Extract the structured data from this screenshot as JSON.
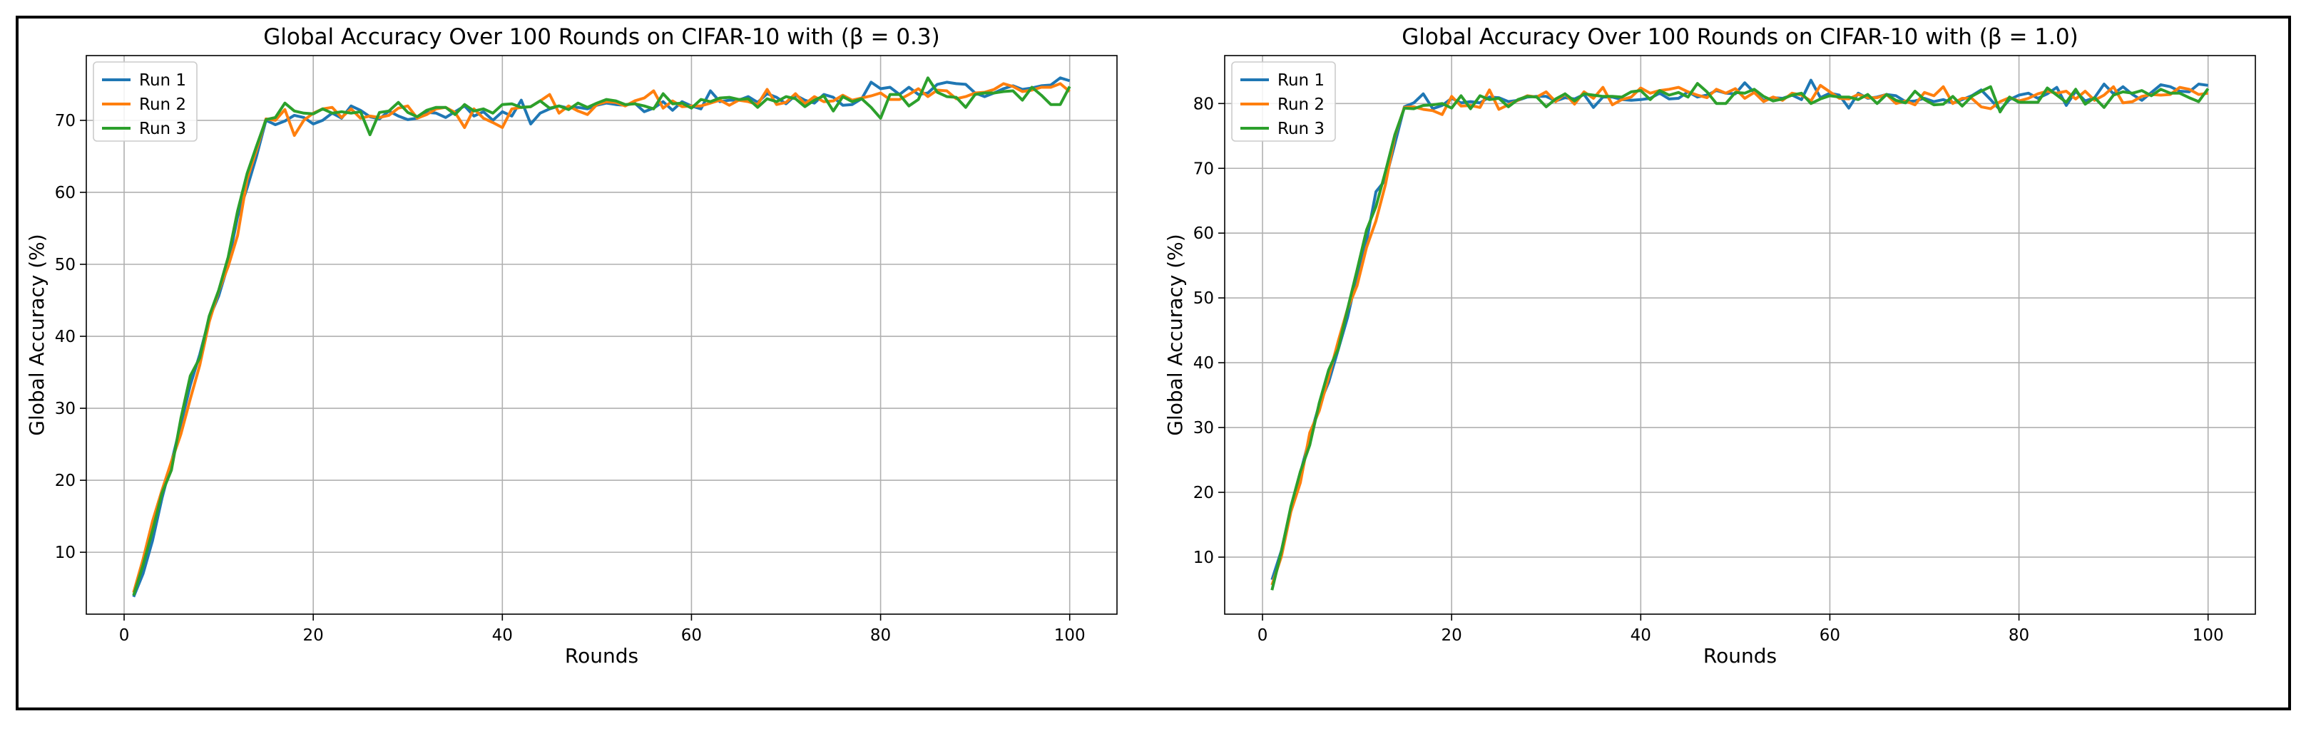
{
  "chart_data": [
    {
      "type": "line",
      "title": "Global Accuracy Over 100 Rounds on CIFAR-10 with (β = 0.3)",
      "xlabel": "Rounds",
      "ylabel": "Global Accuracy (%)",
      "xlim": [
        -4,
        105
      ],
      "ylim": [
        1.4,
        79.0
      ],
      "xticks": [
        0,
        20,
        40,
        60,
        80,
        100
      ],
      "yticks": [
        10,
        20,
        30,
        40,
        50,
        60,
        70
      ],
      "grid": true,
      "legend_position": "top-left",
      "x": [
        1,
        2,
        3,
        4,
        5,
        6,
        7,
        8,
        9,
        10,
        11,
        12,
        13,
        14,
        15,
        16,
        17,
        18,
        19,
        20,
        21,
        22,
        23,
        24,
        25,
        26,
        27,
        28,
        29,
        30,
        31,
        32,
        33,
        34,
        35,
        36,
        37,
        38,
        39,
        40,
        41,
        42,
        43,
        44,
        45,
        46,
        47,
        48,
        49,
        50,
        51,
        52,
        53,
        54,
        55,
        56,
        57,
        58,
        59,
        60,
        61,
        62,
        63,
        64,
        65,
        66,
        67,
        68,
        69,
        70,
        71,
        72,
        73,
        74,
        75,
        76,
        77,
        78,
        79,
        80,
        81,
        82,
        83,
        84,
        85,
        86,
        87,
        88,
        89,
        90,
        91,
        92,
        93,
        94,
        95,
        96,
        97,
        98,
        99,
        100
      ],
      "series": [
        {
          "name": "Run 1",
          "color": "#1f77b4",
          "values": [
            3.8,
            7.0,
            11.6,
            17.5,
            22.5,
            27.8,
            33.2,
            37.5,
            42.5,
            45.6,
            50.0,
            56.6,
            60.6,
            65.0,
            70.0,
            69.4,
            69.9,
            70.7,
            70.4,
            69.5,
            70.0,
            71.0,
            70.3,
            72.0,
            71.4,
            70.5,
            70.2,
            71.3,
            70.6,
            70.1,
            70.3,
            71.1,
            71.0,
            70.4,
            71.2,
            72.0,
            70.6,
            71.2,
            70.0,
            71.2,
            70.6,
            72.8,
            69.5,
            71.0,
            71.6,
            72.0,
            71.7,
            71.8,
            71.6,
            72.1,
            72.4,
            72.2,
            72.1,
            72.4,
            71.2,
            71.7,
            72.6,
            71.4,
            72.6,
            72.0,
            71.6,
            74.1,
            72.6,
            72.8,
            72.8,
            73.3,
            72.5,
            73.7,
            73.2,
            72.3,
            73.5,
            72.8,
            72.4,
            73.6,
            73.2,
            72.1,
            72.2,
            73.0,
            75.3,
            74.4,
            74.6,
            73.6,
            74.6,
            73.6,
            73.8,
            75.0,
            75.3,
            75.1,
            75.0,
            73.8,
            73.3,
            73.8,
            74.4,
            74.8,
            74.3,
            74.5,
            74.8,
            74.9,
            75.9,
            75.5
          ]
        },
        {
          "name": "Run 2",
          "color": "#ff7f0e",
          "values": [
            4.4,
            9.0,
            14.3,
            18.6,
            22.6,
            26.4,
            31.3,
            36.0,
            42.0,
            46.3,
            49.7,
            54.0,
            61.8,
            65.9,
            70.2,
            70.0,
            71.5,
            67.9,
            70.0,
            71.0,
            71.6,
            71.8,
            70.4,
            71.6,
            70.3,
            70.6,
            70.4,
            70.7,
            71.7,
            72.0,
            70.3,
            70.8,
            71.6,
            71.8,
            71.1,
            69.0,
            71.6,
            70.3,
            69.7,
            69.0,
            71.6,
            71.8,
            71.9,
            72.7,
            73.6,
            71.0,
            72.0,
            71.3,
            70.8,
            72.2,
            72.6,
            72.5,
            72.0,
            72.7,
            73.1,
            74.1,
            71.7,
            72.7,
            71.9,
            72.0,
            72.0,
            72.4,
            72.8,
            72.1,
            72.8,
            72.6,
            72.2,
            74.3,
            72.2,
            72.5,
            73.7,
            72.3,
            73.3,
            72.6,
            72.7,
            73.5,
            72.8,
            73.1,
            73.4,
            73.8,
            72.9,
            72.9,
            73.6,
            74.4,
            73.3,
            74.2,
            74.1,
            73.0,
            73.3,
            73.8,
            73.9,
            74.3,
            75.1,
            74.7,
            74.0,
            74.2,
            74.6,
            74.6,
            75.1,
            74.0
          ]
        },
        {
          "name": "Run 3",
          "color": "#2ca02c",
          "values": [
            4.0,
            8.2,
            13.0,
            18.2,
            21.4,
            28.6,
            34.5,
            37.0,
            42.8,
            46.4,
            51.0,
            57.4,
            62.6,
            66.4,
            70.1,
            70.4,
            72.4,
            71.3,
            71.0,
            70.9,
            71.6,
            71.0,
            71.2,
            71.0,
            71.2,
            68.0,
            71.1,
            71.3,
            72.5,
            71.1,
            70.5,
            71.4,
            71.8,
            71.8,
            70.8,
            72.2,
            71.3,
            71.6,
            71.0,
            72.2,
            72.3,
            71.8,
            71.9,
            72.7,
            71.7,
            72.0,
            71.5,
            72.4,
            71.8,
            72.4,
            72.9,
            72.7,
            72.2,
            72.3,
            72.0,
            71.6,
            73.7,
            72.3,
            72.4,
            71.7,
            72.9,
            72.6,
            73.1,
            73.2,
            72.9,
            73.0,
            71.8,
            73.0,
            72.6,
            73.3,
            73.0,
            71.9,
            72.8,
            73.4,
            71.3,
            73.3,
            72.6,
            73.0,
            71.8,
            70.3,
            73.6,
            73.6,
            72.0,
            72.9,
            75.9,
            73.9,
            73.3,
            73.2,
            71.8,
            73.6,
            73.8,
            73.8,
            74.0,
            74.1,
            72.8,
            74.6,
            73.5,
            72.2,
            72.2,
            74.7
          ]
        }
      ]
    },
    {
      "type": "line",
      "title": "Global Accuracy Over 100 Rounds on CIFAR-10 with (β = 1.0)",
      "xlabel": "Rounds",
      "ylabel": "Global Accuracy (%)",
      "xlim": [
        -4,
        105
      ],
      "ylim": [
        1.2,
        87.4
      ],
      "xticks": [
        0,
        20,
        40,
        60,
        80,
        100
      ],
      "yticks": [
        10,
        20,
        30,
        40,
        50,
        60,
        70,
        80
      ],
      "grid": true,
      "legend_position": "top-left",
      "x": [
        1,
        2,
        3,
        4,
        5,
        6,
        7,
        8,
        9,
        10,
        11,
        12,
        13,
        14,
        15,
        16,
        17,
        18,
        19,
        20,
        21,
        22,
        23,
        24,
        25,
        26,
        27,
        28,
        29,
        30,
        31,
        32,
        33,
        34,
        35,
        36,
        37,
        38,
        39,
        40,
        41,
        42,
        43,
        44,
        45,
        46,
        47,
        48,
        49,
        50,
        51,
        52,
        53,
        54,
        55,
        56,
        57,
        58,
        59,
        60,
        61,
        62,
        63,
        64,
        65,
        66,
        67,
        68,
        69,
        70,
        71,
        72,
        73,
        74,
        75,
        76,
        77,
        78,
        79,
        80,
        81,
        82,
        83,
        84,
        85,
        86,
        87,
        88,
        89,
        90,
        91,
        92,
        93,
        94,
        95,
        96,
        97,
        98,
        99,
        100
      ],
      "series": [
        {
          "name": "Run 1",
          "color": "#1f77b4",
          "values": [
            6.5,
            11.0,
            17.5,
            23.0,
            28.5,
            33.5,
            37.0,
            42.0,
            47.0,
            53.5,
            58.8,
            66.4,
            68.2,
            73.8,
            79.5,
            80.1,
            81.5,
            79.2,
            79.7,
            80.8,
            80.1,
            80.3,
            80.1,
            81.0,
            80.9,
            80.3,
            80.5,
            81.0,
            81.1,
            81.1,
            80.4,
            80.9,
            80.7,
            81.4,
            79.4,
            81.0,
            81.0,
            80.6,
            80.5,
            80.6,
            80.8,
            81.6,
            80.7,
            80.8,
            81.8,
            81.0,
            81.3,
            82.0,
            81.6,
            81.5,
            83.2,
            81.7,
            80.5,
            80.9,
            80.8,
            81.3,
            80.6,
            83.6,
            80.9,
            81.6,
            81.3,
            79.3,
            81.6,
            80.8,
            81.0,
            81.4,
            81.2,
            80.3,
            80.4,
            80.8,
            80.3,
            80.6,
            80.1,
            80.6,
            81.2,
            82.1,
            80.6,
            79.0,
            80.6,
            81.3,
            81.6,
            80.8,
            81.5,
            82.5,
            79.7,
            81.9,
            80.4,
            80.9,
            83.0,
            81.5,
            82.6,
            81.4,
            80.5,
            81.7,
            82.9,
            82.6,
            81.9,
            81.8,
            83.0,
            82.8
          ]
        },
        {
          "name": "Run 2",
          "color": "#ff7f0e",
          "values": [
            5.7,
            10.1,
            17.0,
            21.5,
            29.2,
            32.6,
            37.8,
            43.3,
            48.3,
            51.9,
            57.8,
            61.9,
            67.5,
            75.0,
            79.4,
            79.5,
            79.1,
            78.9,
            78.3,
            81.1,
            79.6,
            79.7,
            79.4,
            82.1,
            79.1,
            79.8,
            80.5,
            81.2,
            81.0,
            81.8,
            80.3,
            81.5,
            79.9,
            81.8,
            80.8,
            82.5,
            79.8,
            80.6,
            81.0,
            82.4,
            81.6,
            82.0,
            82.2,
            82.5,
            81.8,
            81.3,
            80.9,
            82.2,
            81.6,
            82.3,
            80.8,
            81.7,
            80.3,
            81.0,
            80.5,
            81.6,
            81.3,
            80.4,
            82.8,
            81.8,
            80.8,
            80.7,
            81.4,
            80.9,
            80.9,
            81.4,
            80.0,
            80.4,
            79.8,
            81.7,
            81.2,
            82.6,
            80.0,
            80.8,
            80.8,
            79.5,
            79.2,
            80.3,
            80.9,
            80.4,
            80.8,
            81.5,
            81.9,
            81.6,
            81.9,
            80.7,
            81.9,
            80.5,
            81.3,
            82.6,
            80.1,
            80.3,
            81.1,
            81.4,
            81.3,
            81.4,
            82.5,
            82.2,
            81.4,
            81.6
          ]
        },
        {
          "name": "Run 3",
          "color": "#2ca02c",
          "values": [
            4.9,
            10.9,
            17.8,
            23.2,
            27.3,
            33.8,
            38.9,
            42.1,
            48.3,
            54.3,
            60.5,
            64.1,
            69.5,
            75.2,
            79.3,
            79.2,
            79.7,
            79.8,
            80.0,
            79.3,
            81.2,
            79.2,
            81.2,
            80.6,
            80.8,
            79.5,
            80.6,
            81.1,
            81.0,
            79.5,
            80.7,
            81.5,
            80.4,
            81.5,
            81.3,
            81.1,
            81.1,
            81.0,
            81.8,
            82.0,
            80.6,
            82.0,
            81.3,
            81.7,
            81.0,
            83.1,
            81.8,
            80.0,
            80.0,
            81.7,
            81.6,
            82.2,
            81.1,
            80.4,
            80.7,
            81.3,
            81.6,
            80.0,
            80.7,
            81.2,
            81.0,
            81.0,
            80.6,
            81.4,
            80.0,
            81.4,
            80.5,
            80.1,
            81.9,
            80.6,
            79.8,
            79.9,
            81.1,
            79.6,
            81.1,
            81.9,
            82.6,
            78.7,
            81.0,
            80.2,
            80.2,
            80.2,
            82.4,
            81.3,
            80.2,
            82.2,
            79.9,
            80.9,
            79.4,
            81.3,
            81.8,
            81.6,
            82.0,
            81.2,
            82.2,
            81.6,
            81.6,
            80.9,
            80.3,
            82.3
          ]
        }
      ]
    }
  ]
}
